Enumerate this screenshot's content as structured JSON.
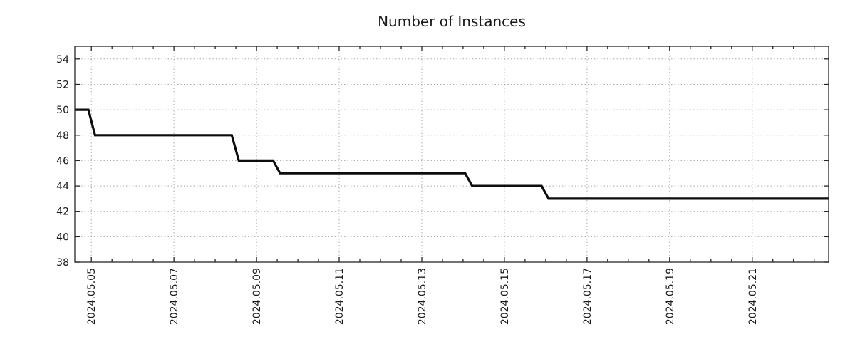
{
  "page": {
    "background": "#ffffff"
  },
  "chart_data": {
    "type": "line",
    "title": "Number of Instances",
    "legend": "none",
    "grid": {
      "show": true,
      "style": "dotted",
      "color": "#a9a9a9"
    },
    "colors": {
      "line": "#0d0d0d",
      "border": "#262626",
      "tick": "#262626",
      "text": "#1a1a1a",
      "background": "#ffffff"
    },
    "x_axis": {
      "unit": "date",
      "label": "",
      "tick_labels": [
        "2024.05.05",
        "2024.05.07",
        "2024.05.09",
        "2024.05.11",
        "2024.05.13",
        "2024.05.15",
        "2024.05.17",
        "2024.05.19",
        "2024.05.21"
      ],
      "tick_positions_days": [
        0,
        2,
        4,
        6,
        8,
        10,
        12,
        14,
        16
      ],
      "minor_tick_step_days": 0.5,
      "xlim_days": [
        -0.4,
        17.85
      ],
      "day_zero": "2024.05.05"
    },
    "y_axis": {
      "label": "",
      "ticks": [
        38,
        40,
        42,
        44,
        46,
        48,
        50,
        52,
        54
      ],
      "ylim": [
        38,
        55
      ]
    },
    "series": [
      {
        "name": "instances",
        "color": "#0d0d0d",
        "width": 3.2,
        "points_day_value": [
          [
            -0.4,
            50
          ],
          [
            -0.07,
            50
          ],
          [
            0.09,
            48
          ],
          [
            3.4,
            48
          ],
          [
            3.57,
            46
          ],
          [
            4.4,
            46
          ],
          [
            4.57,
            45
          ],
          [
            9.05,
            45
          ],
          [
            9.22,
            44
          ],
          [
            10.9,
            44
          ],
          [
            11.07,
            43
          ],
          [
            17.85,
            43
          ]
        ]
      }
    ],
    "value_levels_in_order": [
      50,
      48,
      46,
      45,
      44,
      43
    ]
  }
}
